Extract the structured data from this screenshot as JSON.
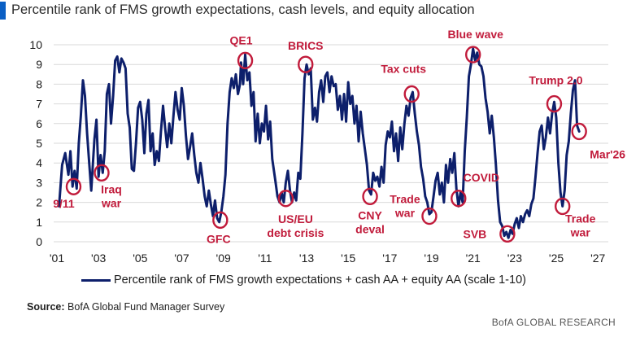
{
  "title": "Percentile rank of FMS growth expectations, cash levels, and equity allocation",
  "source_label": "Source:",
  "source_text": "BofA Global Fund Manager Survey",
  "footer": "BofA GLOBAL RESEARCH",
  "colors": {
    "line": "#0d1f6b",
    "annotation": "#c11b3b",
    "title_bar": "#0a5fc4"
  },
  "chart_data": {
    "type": "line",
    "title": "Percentile rank of FMS growth expectations, cash levels, and equity allocation",
    "xlabel": "",
    "ylabel": "",
    "xlim": [
      2001,
      2027.5
    ],
    "ylim": [
      0,
      10
    ],
    "x_tick_values": [
      2001,
      2003,
      2005,
      2007,
      2009,
      2011,
      2013,
      2015,
      2017,
      2019,
      2021,
      2023,
      2025,
      2027
    ],
    "x_tick_labels": [
      "'01",
      "'03",
      "'05",
      "'07",
      "'09",
      "'11",
      "'13",
      "'15",
      "'17",
      "'19",
      "'21",
      "'23",
      "'25",
      "'27"
    ],
    "y_tick_values": [
      0,
      1,
      2,
      3,
      4,
      5,
      6,
      7,
      8,
      9,
      10
    ],
    "grid": "horizontal",
    "legend": "bottom",
    "series": [
      {
        "name": "Percentile rank of FMS growth expectations + cash AA + equity AA (scale 1-10)",
        "points": [
          [
            2001.1,
            1.8
          ],
          [
            2001.25,
            3.9
          ],
          [
            2001.4,
            4.5
          ],
          [
            2001.55,
            3.4
          ],
          [
            2001.65,
            4.6
          ],
          [
            2001.75,
            2.8
          ],
          [
            2001.85,
            3.6
          ],
          [
            2001.95,
            2.7
          ],
          [
            2002.05,
            5.0
          ],
          [
            2002.15,
            6.4
          ],
          [
            2002.25,
            8.2
          ],
          [
            2002.35,
            7.4
          ],
          [
            2002.45,
            5.5
          ],
          [
            2002.55,
            4.0
          ],
          [
            2002.65,
            2.6
          ],
          [
            2002.8,
            5.2
          ],
          [
            2002.9,
            6.2
          ],
          [
            2003.0,
            3.3
          ],
          [
            2003.1,
            4.4
          ],
          [
            2003.2,
            3.5
          ],
          [
            2003.3,
            4.6
          ],
          [
            2003.4,
            7.5
          ],
          [
            2003.5,
            8.0
          ],
          [
            2003.6,
            6.0
          ],
          [
            2003.7,
            7.4
          ],
          [
            2003.8,
            9.2
          ],
          [
            2003.9,
            9.4
          ],
          [
            2004.0,
            8.6
          ],
          [
            2004.1,
            9.3
          ],
          [
            2004.2,
            9.1
          ],
          [
            2004.3,
            8.8
          ],
          [
            2004.4,
            6.5
          ],
          [
            2004.5,
            5.8
          ],
          [
            2004.6,
            3.7
          ],
          [
            2004.7,
            3.6
          ],
          [
            2004.8,
            5.0
          ],
          [
            2004.9,
            6.8
          ],
          [
            2005.0,
            7.1
          ],
          [
            2005.1,
            6.2
          ],
          [
            2005.2,
            4.5
          ],
          [
            2005.3,
            6.5
          ],
          [
            2005.4,
            7.2
          ],
          [
            2005.5,
            4.6
          ],
          [
            2005.6,
            5.5
          ],
          [
            2005.7,
            3.9
          ],
          [
            2005.8,
            4.6
          ],
          [
            2005.9,
            4.1
          ],
          [
            2006.0,
            5.6
          ],
          [
            2006.1,
            6.9
          ],
          [
            2006.2,
            5.8
          ],
          [
            2006.3,
            4.8
          ],
          [
            2006.4,
            6.0
          ],
          [
            2006.5,
            5.0
          ],
          [
            2006.6,
            6.4
          ],
          [
            2006.7,
            7.6
          ],
          [
            2006.8,
            6.7
          ],
          [
            2006.9,
            6.2
          ],
          [
            2007.0,
            7.8
          ],
          [
            2007.1,
            6.9
          ],
          [
            2007.2,
            5.4
          ],
          [
            2007.3,
            4.2
          ],
          [
            2007.4,
            4.8
          ],
          [
            2007.5,
            5.5
          ],
          [
            2007.6,
            4.4
          ],
          [
            2007.7,
            3.5
          ],
          [
            2007.8,
            3.0
          ],
          [
            2007.9,
            4.0
          ],
          [
            2008.0,
            3.2
          ],
          [
            2008.1,
            2.3
          ],
          [
            2008.2,
            1.8
          ],
          [
            2008.3,
            2.6
          ],
          [
            2008.4,
            1.9
          ],
          [
            2008.5,
            1.3
          ],
          [
            2008.6,
            2.1
          ],
          [
            2008.7,
            1.2
          ],
          [
            2008.8,
            1.0
          ],
          [
            2008.9,
            1.5
          ],
          [
            2009.0,
            2.3
          ],
          [
            2009.1,
            3.4
          ],
          [
            2009.2,
            6.0
          ],
          [
            2009.3,
            7.6
          ],
          [
            2009.4,
            8.3
          ],
          [
            2009.5,
            7.8
          ],
          [
            2009.6,
            8.5
          ],
          [
            2009.7,
            7.5
          ],
          [
            2009.8,
            8.0
          ],
          [
            2009.85,
            9.1
          ],
          [
            2009.95,
            8.0
          ],
          [
            2010.05,
            9.5
          ],
          [
            2010.15,
            8.2
          ],
          [
            2010.25,
            8.6
          ],
          [
            2010.35,
            6.9
          ],
          [
            2010.45,
            7.6
          ],
          [
            2010.55,
            5.1
          ],
          [
            2010.65,
            6.5
          ],
          [
            2010.75,
            5.0
          ],
          [
            2010.85,
            6.0
          ],
          [
            2010.95,
            5.6
          ],
          [
            2011.05,
            6.9
          ],
          [
            2011.15,
            5.2
          ],
          [
            2011.25,
            6.1
          ],
          [
            2011.35,
            4.2
          ],
          [
            2011.5,
            3.1
          ],
          [
            2011.6,
            2.3
          ],
          [
            2011.7,
            2.0
          ],
          [
            2011.8,
            2.5
          ],
          [
            2011.9,
            2.0
          ],
          [
            2012.0,
            3.0
          ],
          [
            2012.1,
            3.6
          ],
          [
            2012.2,
            2.6
          ],
          [
            2012.3,
            2.0
          ],
          [
            2012.4,
            2.5
          ],
          [
            2012.5,
            2.1
          ],
          [
            2012.6,
            3.5
          ],
          [
            2012.7,
            3.2
          ],
          [
            2012.8,
            5.5
          ],
          [
            2012.9,
            8.3
          ],
          [
            2013.0,
            9.0
          ],
          [
            2013.1,
            8.5
          ],
          [
            2013.2,
            8.8
          ],
          [
            2013.3,
            6.2
          ],
          [
            2013.4,
            6.8
          ],
          [
            2013.5,
            6.1
          ],
          [
            2013.6,
            7.6
          ],
          [
            2013.7,
            8.2
          ],
          [
            2013.8,
            7.1
          ],
          [
            2013.9,
            8.4
          ],
          [
            2014.0,
            8.6
          ],
          [
            2014.1,
            7.6
          ],
          [
            2014.2,
            8.4
          ],
          [
            2014.3,
            7.9
          ],
          [
            2014.4,
            8.0
          ],
          [
            2014.5,
            6.7
          ],
          [
            2014.6,
            7.4
          ],
          [
            2014.7,
            6.2
          ],
          [
            2014.8,
            7.5
          ],
          [
            2014.9,
            6.1
          ],
          [
            2015.0,
            8.1
          ],
          [
            2015.1,
            7.0
          ],
          [
            2015.2,
            7.4
          ],
          [
            2015.3,
            6.0
          ],
          [
            2015.4,
            6.9
          ],
          [
            2015.5,
            5.1
          ],
          [
            2015.6,
            6.6
          ],
          [
            2015.7,
            5.5
          ],
          [
            2015.8,
            4.7
          ],
          [
            2015.9,
            3.9
          ],
          [
            2016.0,
            2.6
          ],
          [
            2016.1,
            2.4
          ],
          [
            2016.2,
            3.5
          ],
          [
            2016.3,
            3.1
          ],
          [
            2016.4,
            3.3
          ],
          [
            2016.5,
            2.8
          ],
          [
            2016.6,
            3.8
          ],
          [
            2016.7,
            3.0
          ],
          [
            2016.8,
            4.9
          ],
          [
            2016.9,
            5.6
          ],
          [
            2017.0,
            5.3
          ],
          [
            2017.1,
            6.1
          ],
          [
            2017.2,
            4.6
          ],
          [
            2017.3,
            5.5
          ],
          [
            2017.4,
            4.1
          ],
          [
            2017.5,
            5.8
          ],
          [
            2017.6,
            4.7
          ],
          [
            2017.7,
            6.0
          ],
          [
            2017.8,
            6.9
          ],
          [
            2017.9,
            6.4
          ],
          [
            2018.0,
            7.3
          ],
          [
            2018.1,
            7.6
          ],
          [
            2018.2,
            6.5
          ],
          [
            2018.3,
            5.6
          ],
          [
            2018.4,
            4.9
          ],
          [
            2018.5,
            3.8
          ],
          [
            2018.6,
            3.2
          ],
          [
            2018.7,
            2.3
          ],
          [
            2018.8,
            2.0
          ],
          [
            2018.9,
            1.4
          ],
          [
            2019.0,
            1.5
          ],
          [
            2019.1,
            2.3
          ],
          [
            2019.2,
            3.1
          ],
          [
            2019.3,
            3.5
          ],
          [
            2019.4,
            2.4
          ],
          [
            2019.5,
            3.0
          ],
          [
            2019.6,
            2.0
          ],
          [
            2019.7,
            3.9
          ],
          [
            2019.8,
            3.0
          ],
          [
            2019.9,
            4.2
          ],
          [
            2020.0,
            3.5
          ],
          [
            2020.1,
            4.5
          ],
          [
            2020.2,
            2.7
          ],
          [
            2020.3,
            1.8
          ],
          [
            2020.4,
            2.5
          ],
          [
            2020.5,
            2.0
          ],
          [
            2020.6,
            4.6
          ],
          [
            2020.7,
            6.3
          ],
          [
            2020.8,
            8.4
          ],
          [
            2020.9,
            9.0
          ],
          [
            2021.0,
            9.8
          ],
          [
            2021.1,
            9.2
          ],
          [
            2021.2,
            9.6
          ],
          [
            2021.3,
            9.0
          ],
          [
            2021.4,
            8.9
          ],
          [
            2021.5,
            8.4
          ],
          [
            2021.6,
            7.3
          ],
          [
            2021.7,
            6.6
          ],
          [
            2021.8,
            5.5
          ],
          [
            2021.9,
            6.4
          ],
          [
            2022.0,
            5.3
          ],
          [
            2022.1,
            3.9
          ],
          [
            2022.2,
            2.1
          ],
          [
            2022.3,
            1.0
          ],
          [
            2022.4,
            0.8
          ],
          [
            2022.5,
            0.3
          ],
          [
            2022.6,
            0.5
          ],
          [
            2022.7,
            0.2
          ],
          [
            2022.8,
            0.6
          ],
          [
            2022.9,
            0.4
          ],
          [
            2023.0,
            0.9
          ],
          [
            2023.1,
            1.2
          ],
          [
            2023.2,
            0.7
          ],
          [
            2023.3,
            1.3
          ],
          [
            2023.4,
            1.0
          ],
          [
            2023.5,
            1.4
          ],
          [
            2023.6,
            1.6
          ],
          [
            2023.7,
            1.3
          ],
          [
            2023.8,
            1.9
          ],
          [
            2023.9,
            2.2
          ],
          [
            2024.0,
            3.3
          ],
          [
            2024.1,
            4.5
          ],
          [
            2024.2,
            5.6
          ],
          [
            2024.3,
            5.9
          ],
          [
            2024.4,
            4.7
          ],
          [
            2024.5,
            5.3
          ],
          [
            2024.6,
            6.3
          ],
          [
            2024.7,
            5.5
          ],
          [
            2024.8,
            6.5
          ],
          [
            2024.9,
            7.1
          ],
          [
            2025.0,
            6.3
          ],
          [
            2025.1,
            4.0
          ],
          [
            2025.2,
            2.5
          ],
          [
            2025.3,
            1.8
          ],
          [
            2025.4,
            2.6
          ],
          [
            2025.5,
            4.4
          ],
          [
            2025.6,
            5.1
          ],
          [
            2025.7,
            6.5
          ],
          [
            2025.8,
            7.7
          ],
          [
            2025.9,
            8.2
          ],
          [
            2026.0,
            5.9
          ],
          [
            2026.1,
            5.6
          ]
        ]
      }
    ],
    "annotations": [
      {
        "label": "9/11",
        "x": 2001.8,
        "y": 2.8
      },
      {
        "label": "Iraq war",
        "x": 2003.15,
        "y": 3.5
      },
      {
        "label": "GFC",
        "x": 2008.85,
        "y": 1.1
      },
      {
        "label": "QE1",
        "x": 2010.05,
        "y": 9.2
      },
      {
        "label": "US/EU debt crisis",
        "x": 2012.0,
        "y": 2.2
      },
      {
        "label": "BRICS",
        "x": 2012.95,
        "y": 9.0
      },
      {
        "label": "CNY deval",
        "x": 2016.05,
        "y": 2.3
      },
      {
        "label": "Tax cuts",
        "x": 2018.05,
        "y": 7.5
      },
      {
        "label": "Trade war",
        "x": 2018.9,
        "y": 1.3
      },
      {
        "label": "COVID",
        "x": 2020.3,
        "y": 2.2
      },
      {
        "label": "Blue wave",
        "x": 2021.0,
        "y": 9.5
      },
      {
        "label": "SVB",
        "x": 2022.65,
        "y": 0.4
      },
      {
        "label": "Trump 2.0",
        "x": 2024.9,
        "y": 7.0
      },
      {
        "label": "Trade war",
        "x": 2025.3,
        "y": 1.8
      },
      {
        "label": "Mar'26",
        "x": 2026.1,
        "y": 5.6
      }
    ]
  }
}
